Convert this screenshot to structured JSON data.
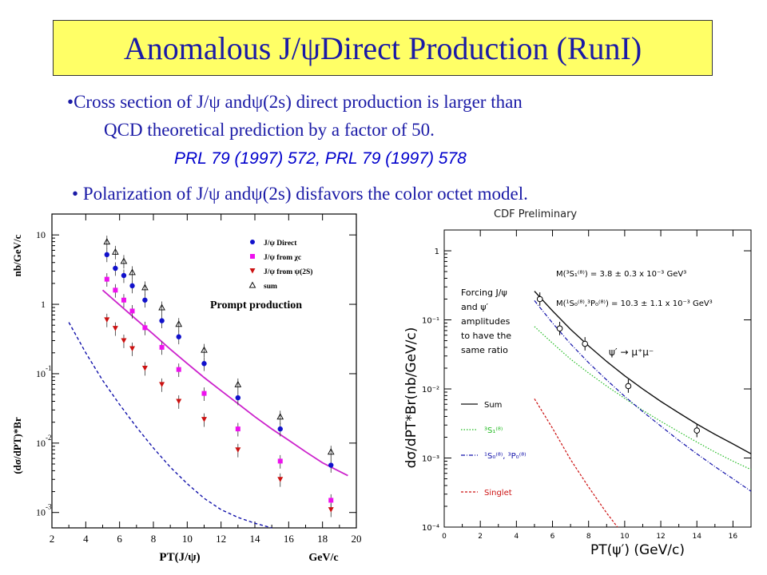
{
  "title": "Anomalous J/ψDirect Production (RunI)",
  "bullets": {
    "b1_line1": "Cross section of J/ψ andψ(2s) direct production is larger than",
    "b1_line2": "QCD theoretical prediction by a factor of 50.",
    "refs": "PRL 79 (1997) 572,   PRL 79 (1997) 578",
    "b2": "Polarization of J/ψ andψ(2s) disfavors the color octet model."
  },
  "chart_data": [
    {
      "type": "scatter",
      "ylabel": "(dσ/dP_T)*Br nb/GeV/c",
      "xlabel": "P_T(J/ψ)",
      "xunit": "GeV/c",
      "annotation": "Prompt production",
      "xlim": [
        2,
        20
      ],
      "ylim_log": [
        0.0006,
        20
      ],
      "x_ticks": [
        2,
        4,
        6,
        8,
        10,
        12,
        14,
        16,
        18,
        20
      ],
      "legend": [
        "J/ψ Direct",
        "J/ψ from χc",
        "J/ψ from ψ(2S)",
        "sum"
      ],
      "series": [
        {
          "name": "J/ψ Direct",
          "marker": "circle",
          "color": "#1111cc",
          "x": [
            5.25,
            5.75,
            6.25,
            6.75,
            7.5,
            8.5,
            9.5,
            11,
            13,
            15.5,
            18.5
          ],
          "y": [
            5.2,
            3.3,
            2.6,
            1.85,
            1.15,
            0.58,
            0.34,
            0.14,
            0.045,
            0.016,
            0.0048
          ]
        },
        {
          "name": "J/ψ from χc",
          "marker": "square",
          "color": "#ee11ee",
          "x": [
            5.25,
            5.75,
            6.25,
            6.75,
            7.5,
            8.5,
            9.5,
            11,
            13,
            15.5,
            18.5
          ],
          "y": [
            2.3,
            1.6,
            1.15,
            0.8,
            0.46,
            0.24,
            0.115,
            0.052,
            0.016,
            0.0055,
            0.0015
          ]
        },
        {
          "name": "J/ψ from ψ(2S)",
          "marker": "triangle-down",
          "color": "#cc1111",
          "x": [
            5.25,
            5.75,
            6.25,
            6.75,
            7.5,
            8.5,
            9.5,
            11,
            13,
            15.5,
            18.5
          ],
          "y": [
            0.6,
            0.45,
            0.3,
            0.23,
            0.12,
            0.07,
            0.04,
            0.022,
            0.008,
            0.003,
            0.0011
          ]
        },
        {
          "name": "sum",
          "marker": "triangle-open",
          "color": "#111111",
          "x": [
            5.25,
            5.75,
            6.25,
            6.75,
            7.5,
            8.5,
            9.5,
            11,
            13,
            15.5,
            18.5
          ],
          "y": [
            8.0,
            5.7,
            4.2,
            2.9,
            1.75,
            0.9,
            0.52,
            0.22,
            0.07,
            0.024,
            0.0075
          ]
        }
      ],
      "curves": [
        {
          "style": "solid",
          "color": "#cc22cc",
          "x": [
            5,
            6,
            7,
            8,
            9,
            10,
            11,
            12,
            13,
            14,
            15,
            16,
            17,
            18,
            19.5
          ],
          "y": [
            1.6,
            0.98,
            0.6,
            0.37,
            0.225,
            0.14,
            0.088,
            0.057,
            0.037,
            0.024,
            0.016,
            0.011,
            0.0075,
            0.0052,
            0.0034
          ]
        },
        {
          "style": "dashed",
          "color": "#1111aa",
          "x": [
            3,
            4,
            5,
            6,
            7,
            8,
            9,
            10,
            11,
            12,
            13,
            14,
            15
          ],
          "y": [
            0.55,
            0.2,
            0.08,
            0.036,
            0.017,
            0.0085,
            0.0045,
            0.0026,
            0.0016,
            0.0011,
            0.00085,
            0.0007,
            0.0006
          ]
        }
      ]
    },
    {
      "type": "scatter",
      "title": "CDF Preliminary",
      "ylabel": "dσ/dP_T*Br(nb/GeV/c)",
      "xlabel": "P_T(ψ′) (GeV/c)",
      "xlim": [
        0,
        17
      ],
      "ylim_log": [
        0.0001,
        2
      ],
      "x_ticks": [
        0,
        2,
        4,
        6,
        8,
        10,
        12,
        14,
        16
      ],
      "y_ticks": [
        "1",
        "10⁻¹",
        "10⁻²",
        "10⁻³",
        "10⁻⁴"
      ],
      "annotations": {
        "m1": "M(³S₁⁽⁸⁾) = 3.8 ± 0.3 x 10⁻³ GeV³",
        "m2": "M(¹S₀⁽⁸⁾,³P₀⁽⁸⁾) = 10.3 ± 1.1 x 10⁻³ GeV³",
        "forcing": [
          "Forcing J/ψ",
          "and ψ′",
          "amplitudes",
          "to have the",
          "same ratio"
        ],
        "decay": "ψ′ → μ⁺μ⁻"
      },
      "legend": [
        "Sum",
        "³S₁⁽⁸⁾",
        "¹S₀⁽⁸⁾, ³P₀⁽⁸⁾",
        "Singlet"
      ],
      "points": {
        "x": [
          5.3,
          6.4,
          7.8,
          10.2,
          14.0
        ],
        "y": [
          0.2,
          0.075,
          0.045,
          0.011,
          0.0025
        ]
      },
      "series": [
        {
          "name": "Sum",
          "style": "solid",
          "color": "#111111",
          "x": [
            5,
            6,
            7,
            8,
            9,
            10,
            11,
            12,
            13,
            14,
            15,
            16,
            17
          ],
          "y": [
            0.26,
            0.135,
            0.073,
            0.042,
            0.025,
            0.0155,
            0.01,
            0.0066,
            0.0045,
            0.0031,
            0.0022,
            0.0016,
            0.00115
          ]
        },
        {
          "name": "³S₁⁽⁸⁾",
          "style": "dotted",
          "color": "#22bb22",
          "x": [
            5,
            6,
            7,
            8,
            9,
            10,
            11,
            12,
            13,
            14,
            15,
            16,
            17
          ],
          "y": [
            0.08,
            0.046,
            0.027,
            0.017,
            0.011,
            0.0073,
            0.0049,
            0.0034,
            0.0024,
            0.0017,
            0.00122,
            0.0009,
            0.00068
          ]
        },
        {
          "name": "¹S₀⁽⁸⁾, ³P₀⁽⁸⁾",
          "style": "dashdot",
          "color": "#1111aa",
          "x": [
            5,
            6,
            7,
            8,
            9,
            10,
            11,
            12,
            13,
            14,
            15,
            16,
            17
          ],
          "y": [
            0.19,
            0.09,
            0.045,
            0.024,
            0.0135,
            0.0078,
            0.0047,
            0.0029,
            0.0018,
            0.00115,
            0.00075,
            0.0005,
            0.00033
          ]
        },
        {
          "name": "Singlet",
          "style": "dashed",
          "color": "#cc1111",
          "x": [
            5,
            6,
            7,
            8,
            9,
            9.6
          ],
          "y": [
            0.0072,
            0.0027,
            0.00095,
            0.00038,
            0.00016,
            0.0001
          ]
        }
      ]
    }
  ]
}
